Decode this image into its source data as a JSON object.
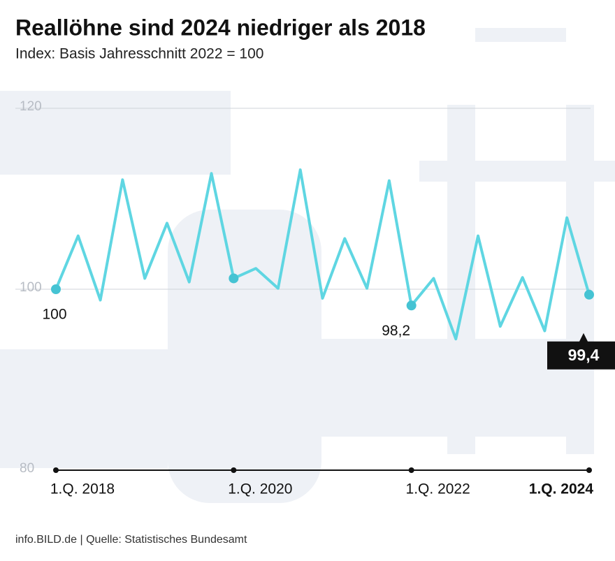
{
  "chart_data": {
    "type": "line",
    "title": "Reallöhne sind 2024 niedriger als 2018",
    "subtitle": "Index: Basis Jahresschnitt 2022 = 100",
    "source": "info.BILD.de | Quelle: Statistisches Bundesamt",
    "categories": [
      "1.Q. 2018",
      null,
      null,
      null,
      null,
      null,
      null,
      null,
      "1.Q. 2020",
      null,
      null,
      null,
      null,
      null,
      null,
      null,
      "1.Q. 2022",
      null,
      null,
      null,
      null,
      null,
      null,
      null,
      "1.Q. 2024"
    ],
    "values": [
      100,
      105.9,
      98.8,
      112.1,
      101.2,
      107.3,
      100.8,
      112.8,
      101.2,
      102.3,
      100.1,
      113.2,
      99.0,
      105.6,
      100.1,
      112.0,
      98.2,
      101.2,
      94.5,
      105.9,
      95.9,
      101.3,
      95.4,
      107.9,
      99.4
    ],
    "value_labels": [
      "100",
      null,
      null,
      null,
      null,
      null,
      null,
      null,
      null,
      null,
      null,
      null,
      null,
      null,
      null,
      null,
      "98,2",
      null,
      null,
      null,
      null,
      null,
      null,
      null,
      "99,4"
    ],
    "color": "#5fd6e2",
    "ylim": [
      80,
      120
    ],
    "yticks": [
      80,
      100,
      120
    ],
    "grid": true
  }
}
